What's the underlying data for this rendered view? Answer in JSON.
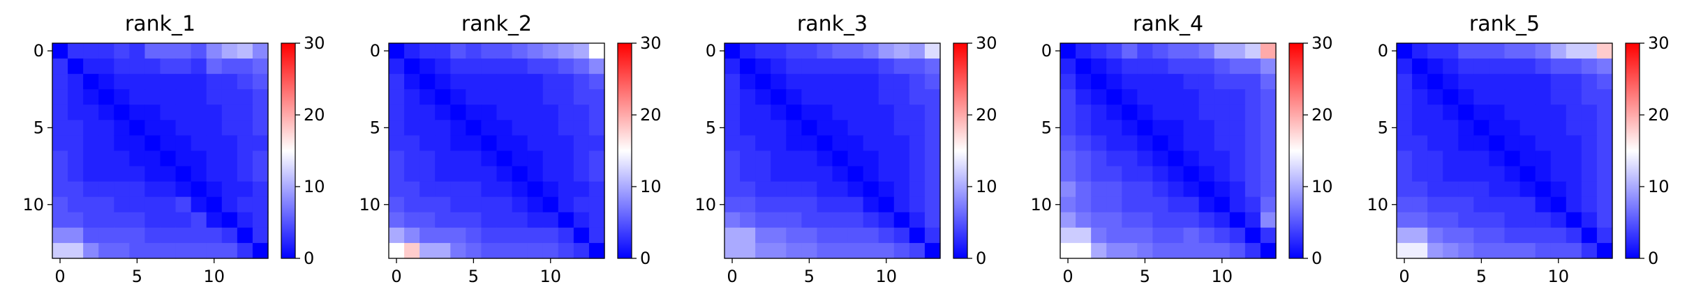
{
  "figure": {
    "colormap": {
      "name": "bwr",
      "low": "#0000ff",
      "mid": "#ffffff",
      "high": "#ff0000"
    }
  },
  "chart_data": [
    {
      "type": "heatmap",
      "title": "rank_1",
      "size": 14,
      "x_ticks": [
        0,
        5,
        10
      ],
      "y_ticks": [
        0,
        5,
        10
      ],
      "colorbar": {
        "min": 0,
        "max": 30,
        "ticks": [
          0,
          10,
          20,
          30
        ]
      },
      "z": [
        [
          0,
          3,
          3,
          3,
          4,
          3,
          6,
          6,
          6,
          5,
          8,
          10,
          11,
          8
        ],
        [
          3,
          0,
          2,
          2,
          3,
          3,
          3,
          4,
          4,
          3,
          6,
          5,
          5,
          6
        ],
        [
          3,
          2,
          0,
          1,
          2,
          2,
          2,
          2,
          2,
          2,
          3,
          3,
          4,
          5
        ],
        [
          3,
          2,
          1,
          0,
          1,
          2,
          2,
          2,
          2,
          2,
          3,
          3,
          3,
          4
        ],
        [
          3,
          2,
          2,
          1,
          0,
          1,
          1,
          2,
          2,
          2,
          2,
          3,
          3,
          4
        ],
        [
          3,
          3,
          2,
          2,
          1,
          0,
          1,
          1,
          2,
          2,
          2,
          3,
          3,
          4
        ],
        [
          3,
          3,
          2,
          2,
          1,
          1,
          0,
          1,
          1,
          2,
          2,
          2,
          3,
          3
        ],
        [
          4,
          3,
          2,
          2,
          2,
          1,
          1,
          0,
          1,
          1,
          2,
          2,
          3,
          4
        ],
        [
          4,
          3,
          2,
          2,
          2,
          2,
          1,
          1,
          0,
          1,
          2,
          2,
          3,
          4
        ],
        [
          4,
          4,
          3,
          3,
          3,
          3,
          2,
          2,
          1,
          0,
          1,
          2,
          2,
          3
        ],
        [
          5,
          4,
          4,
          4,
          3,
          3,
          3,
          3,
          4,
          1,
          0,
          2,
          3,
          3
        ],
        [
          5,
          5,
          4,
          4,
          4,
          4,
          3,
          3,
          3,
          4,
          1,
          0,
          2,
          3
        ],
        [
          8,
          8,
          5,
          5,
          5,
          5,
          4,
          4,
          4,
          4,
          4,
          3,
          0,
          3
        ],
        [
          12,
          12,
          8,
          6,
          6,
          5,
          5,
          5,
          5,
          5,
          5,
          5,
          3,
          0
        ]
      ]
    },
    {
      "type": "heatmap",
      "title": "rank_2",
      "size": 14,
      "x_ticks": [
        0,
        5,
        10
      ],
      "y_ticks": [
        0,
        5,
        10
      ],
      "colorbar": {
        "min": 0,
        "max": 30,
        "ticks": [
          0,
          10,
          20,
          30
        ]
      },
      "z": [
        [
          0,
          2,
          3,
          3,
          5,
          4,
          5,
          5,
          6,
          7,
          8,
          9,
          10,
          15
        ],
        [
          2,
          0,
          1,
          2,
          3,
          3,
          3,
          3,
          3,
          4,
          4,
          5,
          6,
          8
        ],
        [
          3,
          1,
          0,
          1,
          2,
          2,
          2,
          2,
          2,
          2,
          3,
          3,
          4,
          5
        ],
        [
          3,
          2,
          1,
          0,
          1,
          2,
          2,
          2,
          2,
          2,
          3,
          3,
          4,
          4
        ],
        [
          3,
          2,
          2,
          1,
          0,
          1,
          1,
          2,
          2,
          2,
          2,
          3,
          3,
          4
        ],
        [
          3,
          2,
          2,
          2,
          1,
          0,
          1,
          1,
          2,
          2,
          2,
          3,
          3,
          4
        ],
        [
          3,
          3,
          2,
          2,
          1,
          1,
          0,
          1,
          1,
          2,
          2,
          2,
          3,
          3
        ],
        [
          4,
          3,
          3,
          2,
          2,
          2,
          1,
          0,
          1,
          1,
          2,
          2,
          3,
          4
        ],
        [
          4,
          3,
          3,
          2,
          2,
          2,
          2,
          1,
          0,
          1,
          2,
          2,
          3,
          4
        ],
        [
          4,
          4,
          3,
          3,
          3,
          3,
          2,
          2,
          1,
          0,
          1,
          2,
          2,
          3
        ],
        [
          5,
          4,
          4,
          4,
          3,
          3,
          3,
          3,
          2,
          1,
          0,
          2,
          3,
          3
        ],
        [
          6,
          5,
          5,
          4,
          4,
          4,
          3,
          3,
          3,
          2,
          2,
          0,
          2,
          3
        ],
        [
          10,
          8,
          6,
          6,
          6,
          5,
          4,
          4,
          4,
          4,
          4,
          3,
          0,
          3
        ],
        [
          15,
          18,
          10,
          10,
          7,
          6,
          5,
          5,
          5,
          5,
          5,
          4,
          3,
          0
        ]
      ]
    },
    {
      "type": "heatmap",
      "title": "rank_3",
      "size": 14,
      "x_ticks": [
        0,
        5,
        10
      ],
      "y_ticks": [
        0,
        5,
        10
      ],
      "colorbar": {
        "min": 0,
        "max": 30,
        "ticks": [
          0,
          10,
          20,
          30
        ]
      },
      "z": [
        [
          0,
          2,
          3,
          3,
          4,
          4,
          5,
          6,
          6,
          7,
          9,
          10,
          9,
          13
        ],
        [
          2,
          0,
          1,
          2,
          3,
          3,
          3,
          3,
          3,
          3,
          4,
          5,
          5,
          6
        ],
        [
          3,
          1,
          0,
          1,
          2,
          2,
          2,
          2,
          2,
          2,
          3,
          3,
          4,
          5
        ],
        [
          3,
          2,
          1,
          0,
          1,
          2,
          2,
          2,
          2,
          2,
          3,
          3,
          4,
          4
        ],
        [
          3,
          2,
          2,
          1,
          0,
          1,
          1,
          2,
          2,
          2,
          2,
          3,
          3,
          4
        ],
        [
          3,
          2,
          2,
          2,
          1,
          0,
          1,
          1,
          2,
          2,
          2,
          3,
          3,
          4
        ],
        [
          3,
          3,
          2,
          2,
          1,
          1,
          0,
          1,
          1,
          2,
          2,
          2,
          3,
          4
        ],
        [
          4,
          3,
          3,
          2,
          2,
          2,
          1,
          0,
          1,
          1,
          2,
          2,
          3,
          4
        ],
        [
          4,
          3,
          3,
          2,
          2,
          2,
          2,
          1,
          0,
          1,
          2,
          2,
          3,
          4
        ],
        [
          4,
          4,
          3,
          3,
          3,
          3,
          2,
          2,
          1,
          0,
          1,
          2,
          3,
          4
        ],
        [
          5,
          5,
          4,
          4,
          4,
          4,
          3,
          3,
          3,
          1,
          0,
          2,
          3,
          4
        ],
        [
          7,
          6,
          5,
          5,
          5,
          4,
          4,
          4,
          4,
          3,
          2,
          0,
          2,
          4
        ],
        [
          10,
          10,
          7,
          7,
          6,
          6,
          5,
          5,
          5,
          5,
          4,
          3,
          0,
          3
        ],
        [
          10,
          10,
          8,
          8,
          7,
          7,
          6,
          6,
          6,
          6,
          6,
          5,
          4,
          0
        ]
      ]
    },
    {
      "type": "heatmap",
      "title": "rank_4",
      "size": 14,
      "x_ticks": [
        0,
        5,
        10
      ],
      "y_ticks": [
        0,
        5,
        10
      ],
      "colorbar": {
        "min": 0,
        "max": 30,
        "ticks": [
          0,
          10,
          20,
          30
        ]
      },
      "z": [
        [
          0,
          2,
          3,
          4,
          6,
          4,
          5,
          6,
          6,
          7,
          10,
          10,
          12,
          20
        ],
        [
          2,
          0,
          1,
          2,
          3,
          3,
          3,
          4,
          4,
          4,
          5,
          6,
          6,
          8
        ],
        [
          3,
          1,
          0,
          1,
          2,
          2,
          2,
          2,
          3,
          3,
          4,
          4,
          4,
          6
        ],
        [
          4,
          2,
          1,
          0,
          1,
          2,
          2,
          2,
          2,
          3,
          3,
          3,
          4,
          5
        ],
        [
          4,
          3,
          2,
          1,
          0,
          1,
          2,
          2,
          2,
          3,
          3,
          3,
          4,
          5
        ],
        [
          4,
          3,
          2,
          2,
          1,
          0,
          1,
          1,
          2,
          2,
          3,
          3,
          4,
          5
        ],
        [
          5,
          4,
          3,
          2,
          2,
          1,
          0,
          1,
          2,
          2,
          3,
          3,
          4,
          5
        ],
        [
          6,
          5,
          4,
          3,
          3,
          2,
          1,
          0,
          1,
          2,
          2,
          3,
          4,
          5
        ],
        [
          6,
          5,
          4,
          4,
          3,
          3,
          2,
          1,
          0,
          1,
          2,
          3,
          4,
          5
        ],
        [
          8,
          6,
          5,
          5,
          4,
          4,
          3,
          2,
          1,
          0,
          1,
          2,
          4,
          5
        ],
        [
          7,
          6,
          5,
          5,
          4,
          4,
          4,
          3,
          3,
          1,
          0,
          2,
          3,
          6
        ],
        [
          9,
          7,
          6,
          6,
          5,
          5,
          4,
          4,
          4,
          3,
          2,
          0,
          2,
          8
        ],
        [
          12,
          12,
          7,
          6,
          6,
          6,
          5,
          5,
          6,
          5,
          4,
          3,
          0,
          3
        ],
        [
          15,
          15,
          10,
          8,
          8,
          7,
          6,
          6,
          6,
          6,
          6,
          5,
          3,
          0
        ]
      ]
    },
    {
      "type": "heatmap",
      "title": "rank_5",
      "size": 14,
      "x_ticks": [
        0,
        5,
        10
      ],
      "y_ticks": [
        0,
        5,
        10
      ],
      "colorbar": {
        "min": 0,
        "max": 30,
        "ticks": [
          0,
          10,
          20,
          30
        ]
      },
      "z": [
        [
          0,
          2,
          3,
          3,
          5,
          5,
          5,
          6,
          6,
          7,
          10,
          12,
          12,
          18
        ],
        [
          2,
          0,
          1,
          2,
          3,
          3,
          3,
          3,
          3,
          4,
          5,
          5,
          6,
          7
        ],
        [
          3,
          1,
          0,
          1,
          2,
          2,
          2,
          2,
          2,
          2,
          3,
          3,
          4,
          5
        ],
        [
          3,
          2,
          1,
          0,
          1,
          2,
          2,
          2,
          2,
          2,
          3,
          3,
          4,
          4
        ],
        [
          3,
          2,
          2,
          1,
          0,
          1,
          1,
          2,
          2,
          2,
          2,
          3,
          3,
          4
        ],
        [
          3,
          2,
          2,
          2,
          1,
          0,
          1,
          1,
          2,
          2,
          2,
          3,
          3,
          4
        ],
        [
          3,
          3,
          2,
          2,
          1,
          1,
          0,
          1,
          1,
          2,
          2,
          2,
          3,
          4
        ],
        [
          4,
          3,
          3,
          2,
          2,
          2,
          1,
          0,
          1,
          1,
          2,
          2,
          3,
          4
        ],
        [
          4,
          3,
          3,
          2,
          2,
          2,
          2,
          1,
          0,
          1,
          2,
          2,
          3,
          4
        ],
        [
          4,
          4,
          3,
          3,
          3,
          3,
          2,
          2,
          1,
          0,
          1,
          2,
          3,
          4
        ],
        [
          5,
          5,
          4,
          4,
          4,
          3,
          3,
          3,
          3,
          1,
          0,
          2,
          3,
          4
        ],
        [
          6,
          6,
          5,
          5,
          4,
          4,
          4,
          3,
          3,
          3,
          2,
          0,
          2,
          4
        ],
        [
          10,
          10,
          7,
          6,
          6,
          5,
          5,
          4,
          4,
          4,
          4,
          3,
          0,
          3
        ],
        [
          14,
          14,
          9,
          8,
          7,
          6,
          6,
          6,
          6,
          5,
          5,
          5,
          3,
          0
        ]
      ]
    }
  ]
}
